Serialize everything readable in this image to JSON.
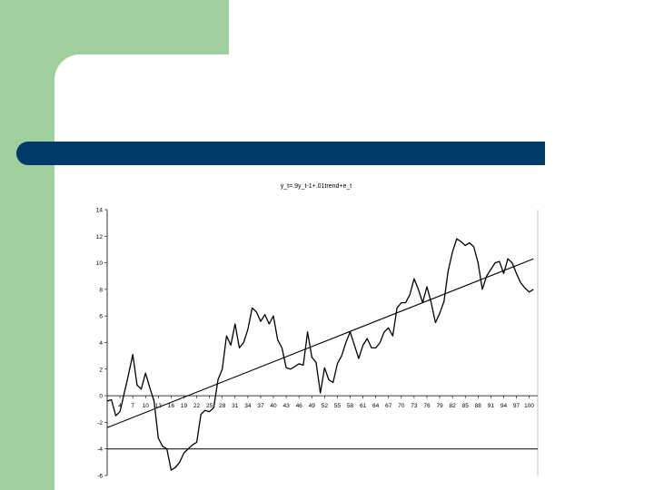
{
  "slide": {
    "background": "#ffffff",
    "accent_green": "#9fcf9c",
    "title_bar_color": "#003a6b"
  },
  "chart_data": {
    "type": "line",
    "title": "y_t=.9y_t-1+.01trend+e_t",
    "ylim": [
      -6,
      14
    ],
    "y_ticks": [
      14,
      12,
      10,
      8,
      6,
      4,
      2,
      0,
      -2,
      -4,
      -6
    ],
    "y_tick_labels": [
      "14",
      "12",
      "10",
      "8",
      "6",
      "4",
      "2",
      "0",
      "-2",
      "-4",
      "-6"
    ],
    "x_range": [
      1,
      102
    ],
    "x_ticks": [
      4,
      7,
      10,
      13,
      16,
      19,
      22,
      25,
      28,
      31,
      34,
      37,
      40,
      43,
      46,
      49,
      52,
      55,
      58,
      61,
      64,
      67,
      70,
      73,
      76,
      79,
      82,
      85,
      88,
      91,
      94,
      97,
      100
    ],
    "x_tick_labels": [
      "4",
      "7",
      "10",
      "13",
      "16",
      "19",
      "22",
      "25",
      "28",
      "31",
      "34",
      "37",
      "40",
      "43",
      "46",
      "49",
      "52",
      "55",
      "58",
      "61",
      "64",
      "67",
      "70",
      "73",
      "76",
      "79",
      "82",
      "85",
      "88",
      "91",
      "94",
      "97",
      "100"
    ],
    "reference_line_y": -4,
    "series": [
      {
        "kind": "data",
        "values": [
          -0.4,
          -0.3,
          -1.5,
          -1.2,
          0.2,
          1.6,
          3.1,
          0.8,
          0.5,
          1.7,
          0.6,
          -0.4,
          -3.2,
          -3.8,
          -4.0,
          -5.6,
          -5.4,
          -5.0,
          -4.3,
          -4.0,
          -3.7,
          -3.5,
          -1.4,
          -1.1,
          -1.2,
          -0.9,
          1.2,
          2.0,
          4.5,
          3.8,
          5.4,
          3.6,
          4.0,
          5.0,
          6.6,
          6.3,
          5.6,
          6.1,
          5.4,
          6.0,
          4.2,
          3.6,
          2.1,
          2.0,
          2.2,
          2.4,
          2.3,
          4.8,
          2.9,
          2.5,
          0.2,
          2.1,
          1.2,
          1.0,
          2.4,
          3.0,
          4.0,
          4.8,
          3.8,
          2.8,
          3.8,
          4.3,
          3.6,
          3.6,
          4.0,
          4.8,
          5.1,
          4.5,
          6.6,
          7.0,
          7.0,
          7.6,
          8.8,
          8.0,
          7.0,
          8.2,
          7.0,
          5.5,
          6.2,
          7.1,
          9.4,
          10.8,
          11.8,
          11.6,
          11.3,
          11.5,
          11.2,
          10.0,
          8.0,
          9.0,
          9.5,
          10.0,
          10.1,
          9.2,
          10.3,
          10.0,
          9.2,
          8.5,
          8.1,
          7.8,
          8.0
        ],
        "color": "#000000"
      },
      {
        "kind": "trend",
        "start": [
          1,
          -2.4
        ],
        "end": [
          101,
          10.3
        ],
        "color": "#000000"
      }
    ]
  }
}
